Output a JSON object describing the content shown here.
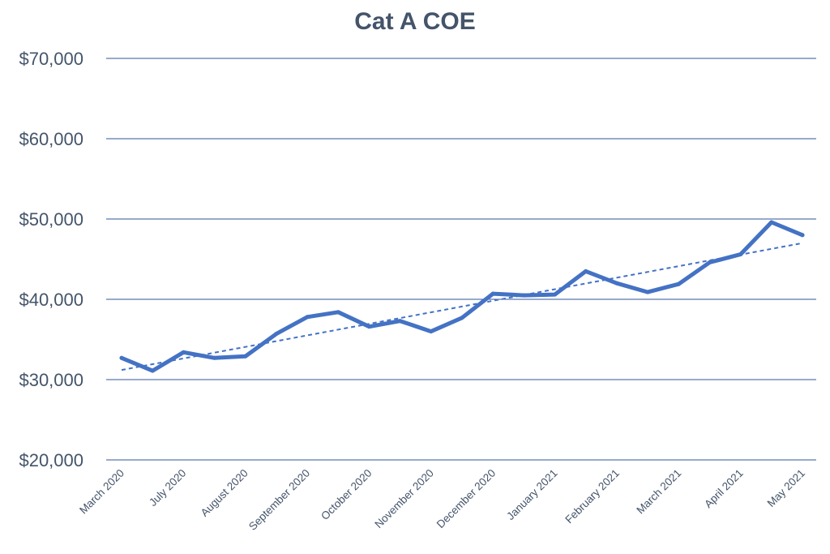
{
  "chart_data": {
    "type": "line",
    "title": "Cat A COE",
    "xlabel": "",
    "ylabel": "",
    "ylim": [
      20000,
      70000
    ],
    "y_ticks": [
      20000,
      30000,
      40000,
      50000,
      60000,
      70000
    ],
    "y_tick_labels": [
      "$20,000",
      "$30,000",
      "$40,000",
      "$50,000",
      "$60,000",
      "$70,000"
    ],
    "x_tick_labels": [
      "March 2020",
      "July 2020",
      "August 2020",
      "September 2020",
      "October 2020",
      "November 2020",
      "December 2020",
      "January 2021",
      "February 2021",
      "March 2021",
      "April 2021",
      "May 2021"
    ],
    "x_tick_every": 2,
    "point_count": 23,
    "grid": true,
    "legend": "none",
    "series": [
      {
        "color": "#4472c4",
        "values": [
          32700,
          31100,
          33400,
          32700,
          32900,
          35700,
          37800,
          38400,
          36600,
          37300,
          36000,
          37700,
          40700,
          40500,
          40600,
          43500,
          42000,
          40900,
          41900,
          44600,
          45600,
          49600,
          48000
        ]
      }
    ],
    "trendline": {
      "type": "linear",
      "style": "dashed",
      "color": "#4472c4",
      "start": 31200,
      "end": 47000
    }
  }
}
